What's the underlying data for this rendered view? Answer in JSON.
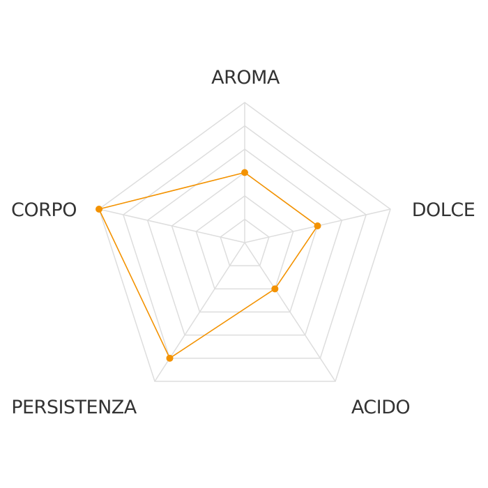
{
  "chart_data": {
    "type": "radar",
    "categories": [
      "AROMA",
      "DOLCE",
      "ACIDO",
      "PERSISTENZA",
      "CORPO"
    ],
    "values": [
      3,
      3,
      2,
      5,
      6
    ],
    "rlim": [
      0,
      6
    ],
    "rings": 6,
    "grid": true,
    "colors": {
      "series": "#f39200",
      "grid": "#dddddd",
      "label": "#333333"
    }
  }
}
